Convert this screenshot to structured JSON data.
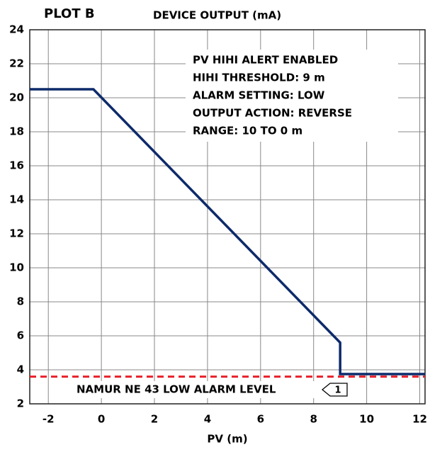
{
  "chart_data": {
    "type": "line",
    "title": "PLOT B",
    "y_axis_label": "DEVICE OUTPUT (mA)",
    "x_axis_label": "PV (m)",
    "x": [
      -2.7,
      -0.3,
      9,
      9,
      12.2
    ],
    "series": [
      {
        "name": "Device output",
        "color": "#0d2a6a",
        "values": [
          20.5,
          20.5,
          5.6,
          3.75,
          3.75
        ]
      }
    ],
    "reference_line": {
      "label": "NAMUR NE 43 LOW ALARM LEVEL",
      "flag": "1",
      "value": 3.6,
      "color": "#e8202a"
    },
    "annotations": [
      "PV HIHI ALERT ENABLED",
      "HIHI THRESHOLD: 9 m",
      "ALARM SETTING: LOW",
      "OUTPUT ACTION: REVERSE",
      "RANGE: 10 TO 0 m"
    ],
    "xlim": [
      -2.7,
      12.2
    ],
    "ylim": [
      2,
      24
    ],
    "xticks": [
      -2,
      0,
      2,
      4,
      6,
      8,
      10,
      12
    ],
    "yticks": [
      2,
      4,
      6,
      8,
      10,
      12,
      14,
      16,
      18,
      20,
      22,
      24
    ],
    "grid": true
  }
}
